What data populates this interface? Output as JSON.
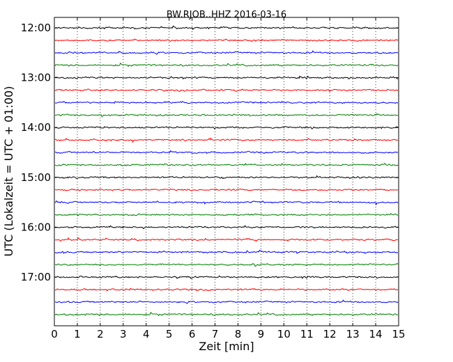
{
  "chart_data": {
    "type": "line",
    "title": "BW.RJOB..HHZ 2016-03-16",
    "xlabel": "Zeit  [min]",
    "ylabel": "UTC (Lokalzeit = UTC + 01:00)",
    "xlim": [
      0,
      15
    ],
    "x_ticks": [
      "0",
      "1",
      "2",
      "3",
      "4",
      "5",
      "6",
      "7",
      "8",
      "9",
      "10",
      "11",
      "12",
      "13",
      "14",
      "15"
    ],
    "y_tick_labels": [
      "12:00",
      "13:00",
      "14:00",
      "15:00",
      "16:00",
      "17:00"
    ],
    "grid": "vertical dotted lines at each minute",
    "trace_colors": [
      "#000000",
      "#ff0000",
      "#0000ff",
      "#008000"
    ],
    "traces": [
      {
        "start": "12:00",
        "color": "#000000"
      },
      {
        "start": "12:15",
        "color": "#ff0000"
      },
      {
        "start": "12:30",
        "color": "#0000ff"
      },
      {
        "start": "12:45",
        "color": "#008000"
      },
      {
        "start": "13:00",
        "color": "#000000"
      },
      {
        "start": "13:15",
        "color": "#ff0000"
      },
      {
        "start": "13:30",
        "color": "#0000ff"
      },
      {
        "start": "13:45",
        "color": "#008000"
      },
      {
        "start": "14:00",
        "color": "#000000"
      },
      {
        "start": "14:15",
        "color": "#ff0000"
      },
      {
        "start": "14:30",
        "color": "#0000ff"
      },
      {
        "start": "14:45",
        "color": "#008000"
      },
      {
        "start": "15:00",
        "color": "#000000"
      },
      {
        "start": "15:15",
        "color": "#ff0000"
      },
      {
        "start": "15:30",
        "color": "#0000ff"
      },
      {
        "start": "15:45",
        "color": "#008000"
      },
      {
        "start": "16:00",
        "color": "#000000"
      },
      {
        "start": "16:15",
        "color": "#ff0000"
      },
      {
        "start": "16:30",
        "color": "#0000ff"
      },
      {
        "start": "16:45",
        "color": "#008000"
      },
      {
        "start": "17:00",
        "color": "#000000"
      },
      {
        "start": "17:15",
        "color": "#ff0000"
      },
      {
        "start": "17:30",
        "color": "#0000ff"
      },
      {
        "start": "17:45",
        "color": "#008000"
      }
    ]
  }
}
